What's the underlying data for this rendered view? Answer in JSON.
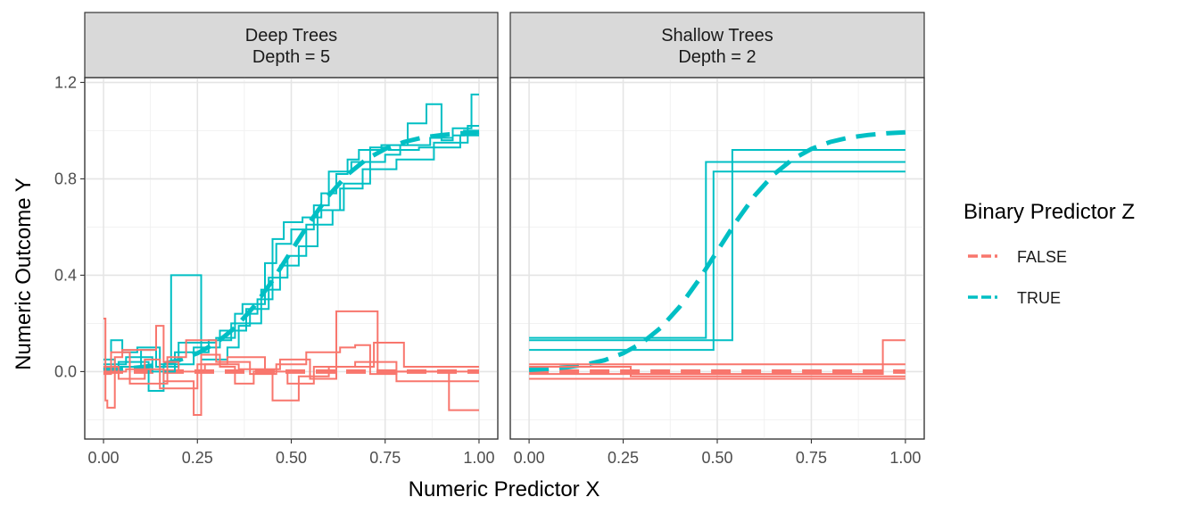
{
  "colors": {
    "FALSE": "#F8766D",
    "TRUE": "#00BFC4"
  },
  "chart_data": {
    "type": "line",
    "xlabel": "Numeric Predictor X",
    "ylabel": "Numeric Outcome Y",
    "xlim": [
      -0.05,
      1.05
    ],
    "ylim": [
      -0.28,
      1.22
    ],
    "x_ticks": [
      0,
      0.25,
      0.5,
      0.75,
      1
    ],
    "x_tick_labels": [
      "0.00",
      "0.25",
      "0.50",
      "0.75",
      "1.00"
    ],
    "y_ticks": [
      0,
      0.4,
      0.8,
      1.2
    ],
    "y_tick_labels": [
      "0.0",
      "0.4",
      "0.8",
      "1.2"
    ],
    "legend": {
      "title": "Binary Predictor Z",
      "position": "right",
      "entries": [
        {
          "label": "FALSE",
          "color_key": "FALSE"
        },
        {
          "label": "TRUE",
          "color_key": "TRUE"
        }
      ]
    },
    "panels": [
      {
        "strip_line1": "Deep Trees",
        "strip_line2": "Depth = 5",
        "true_curve": {
          "group": "TRUE",
          "style": "dashed",
          "x": [
            0,
            0.05,
            0.1,
            0.15,
            0.2,
            0.25,
            0.3,
            0.35,
            0.4,
            0.45,
            0.5,
            0.55,
            0.6,
            0.65,
            0.7,
            0.75,
            0.8,
            0.85,
            0.9,
            0.95,
            1.0
          ],
          "y": [
            0.007,
            0.011,
            0.018,
            0.029,
            0.047,
            0.076,
            0.119,
            0.182,
            0.269,
            0.378,
            0.5,
            0.622,
            0.731,
            0.818,
            0.881,
            0.924,
            0.953,
            0.971,
            0.982,
            0.989,
            0.993
          ]
        },
        "false_curve": {
          "group": "FALSE",
          "style": "dashed",
          "x": [
            0,
            1
          ],
          "y": [
            0,
            0
          ]
        },
        "fits": [
          {
            "group": "TRUE",
            "x": [
              0,
              0.02,
              0.02,
              0.05,
              0.05,
              0.09,
              0.09,
              0.15,
              0.15,
              0.18,
              0.18,
              0.26,
              0.26,
              0.33,
              0.33,
              0.36,
              0.36,
              0.39,
              0.39,
              0.41,
              0.41,
              0.45,
              0.45,
              0.48,
              0.48,
              0.53,
              0.53,
              0.58,
              0.58,
              0.62,
              0.62,
              0.65,
              0.65,
              0.68,
              0.68,
              0.74,
              0.74,
              0.81,
              0.81,
              0.86,
              0.86,
              0.9,
              0.9,
              0.93,
              0.93,
              0.98,
              0.98,
              1.0
            ],
            "y": [
              0.02,
              0.02,
              0.13,
              0.13,
              0.08,
              0.08,
              0.1,
              0.1,
              0.03,
              0.03,
              0.4,
              0.4,
              0.05,
              0.05,
              0.1,
              0.1,
              0.19,
              0.19,
              0.24,
              0.24,
              0.3,
              0.3,
              0.55,
              0.55,
              0.62,
              0.62,
              0.64,
              0.64,
              0.74,
              0.74,
              0.82,
              0.82,
              0.88,
              0.88,
              0.92,
              0.92,
              0.94,
              0.94,
              1.03,
              1.03,
              1.11,
              1.11,
              0.96,
              0.96,
              1.01,
              1.01,
              1.15,
              1.15
            ]
          },
          {
            "group": "TRUE",
            "x": [
              0,
              0.03,
              0.03,
              0.1,
              0.1,
              0.14,
              0.14,
              0.2,
              0.2,
              0.3,
              0.3,
              0.35,
              0.35,
              0.37,
              0.37,
              0.43,
              0.43,
              0.46,
              0.46,
              0.5,
              0.5,
              0.56,
              0.56,
              0.6,
              0.6,
              0.66,
              0.66,
              0.75,
              0.75,
              0.79,
              0.79,
              0.87,
              0.87,
              0.93,
              0.93,
              0.96,
              0.96,
              1.0
            ],
            "y": [
              0.05,
              0.05,
              0.02,
              0.02,
              0.09,
              0.09,
              0.02,
              0.02,
              0.12,
              0.12,
              0.14,
              0.14,
              0.24,
              0.24,
              0.28,
              0.28,
              0.45,
              0.45,
              0.53,
              0.53,
              0.59,
              0.59,
              0.69,
              0.69,
              0.83,
              0.83,
              0.87,
              0.87,
              0.9,
              0.9,
              0.94,
              0.94,
              0.97,
              0.97,
              0.98,
              0.98,
              1.0,
              1.0
            ]
          },
          {
            "group": "TRUE",
            "x": [
              0,
              0.04,
              0.04,
              0.12,
              0.12,
              0.16,
              0.16,
              0.24,
              0.24,
              0.31,
              0.31,
              0.38,
              0.38,
              0.44,
              0.44,
              0.49,
              0.49,
              0.54,
              0.54,
              0.61,
              0.61,
              0.64,
              0.64,
              0.71,
              0.71,
              0.76,
              0.76,
              0.84,
              0.84,
              0.95,
              0.95,
              1.0
            ],
            "y": [
              0.01,
              0.01,
              0.04,
              0.04,
              -0.08,
              -0.08,
              0.03,
              0.03,
              0.1,
              0.1,
              0.17,
              0.17,
              0.26,
              0.26,
              0.39,
              0.39,
              0.48,
              0.48,
              0.61,
              0.61,
              0.67,
              0.67,
              0.78,
              0.78,
              0.93,
              0.93,
              0.92,
              0.92,
              0.93,
              0.93,
              0.98,
              0.98
            ]
          },
          {
            "group": "TRUE",
            "x": [
              0,
              0.06,
              0.06,
              0.13,
              0.13,
              0.19,
              0.19,
              0.28,
              0.28,
              0.34,
              0.34,
              0.42,
              0.42,
              0.47,
              0.47,
              0.52,
              0.52,
              0.57,
              0.57,
              0.63,
              0.63,
              0.69,
              0.69,
              0.78,
              0.78,
              0.88,
              0.88,
              0.97,
              0.97,
              1.0
            ],
            "y": [
              0.03,
              0.03,
              0.06,
              0.06,
              0.0,
              0.0,
              0.08,
              0.08,
              0.13,
              0.13,
              0.2,
              0.2,
              0.34,
              0.34,
              0.44,
              0.44,
              0.52,
              0.52,
              0.67,
              0.67,
              0.76,
              0.76,
              0.84,
              0.84,
              0.88,
              0.88,
              0.95,
              0.95,
              1.02,
              1.02
            ]
          },
          {
            "group": "FALSE",
            "x": [
              0,
              0.005,
              0.005,
              0.01,
              0.01,
              0.03,
              0.03,
              0.05,
              0.05,
              0.14,
              0.14,
              0.16,
              0.16,
              0.2,
              0.2,
              0.27,
              0.27,
              0.36,
              0.36,
              0.47,
              0.47,
              0.55,
              0.55,
              0.62,
              0.62,
              0.73,
              0.73,
              0.92,
              0.92,
              1.0
            ],
            "y": [
              0.22,
              0.22,
              -0.12,
              -0.12,
              -0.15,
              -0.15,
              0.06,
              0.06,
              0.09,
              0.09,
              0.19,
              0.19,
              0.04,
              0.04,
              0.0,
              0.0,
              0.03,
              0.03,
              0.01,
              0.01,
              0.05,
              0.05,
              -0.03,
              -0.03,
              0.25,
              0.25,
              0.0,
              0.0,
              -0.16,
              -0.16
            ]
          },
          {
            "group": "FALSE",
            "x": [
              0,
              0.02,
              0.02,
              0.07,
              0.07,
              0.17,
              0.17,
              0.22,
              0.22,
              0.3,
              0.3,
              0.39,
              0.39,
              0.46,
              0.46,
              0.54,
              0.54,
              0.63,
              0.63,
              0.67,
              0.67,
              0.71,
              0.71,
              0.78,
              0.78,
              1.0
            ],
            "y": [
              -0.01,
              -0.01,
              0.08,
              0.08,
              -0.05,
              -0.05,
              0.06,
              0.06,
              0.13,
              0.13,
              0.04,
              0.04,
              -0.01,
              -0.01,
              0.03,
              0.03,
              0.08,
              0.08,
              0.1,
              0.1,
              0.11,
              0.11,
              -0.01,
              -0.01,
              0.0,
              0.0
            ]
          },
          {
            "group": "FALSE",
            "x": [
              0,
              0.04,
              0.04,
              0.11,
              0.11,
              0.15,
              0.15,
              0.25,
              0.25,
              0.33,
              0.33,
              0.43,
              0.43,
              0.49,
              0.49,
              0.56,
              0.56,
              0.67,
              0.67,
              0.78,
              0.78,
              0.85,
              0.85,
              1.0
            ],
            "y": [
              0.02,
              0.02,
              -0.03,
              -0.03,
              0.05,
              0.05,
              -0.07,
              -0.07,
              0.03,
              0.03,
              0.06,
              0.06,
              0.0,
              0.0,
              -0.05,
              -0.05,
              0.02,
              0.02,
              0.04,
              0.04,
              -0.04,
              -0.04,
              -0.04,
              -0.04
            ]
          },
          {
            "group": "FALSE",
            "x": [
              0,
              0.06,
              0.06,
              0.16,
              0.16,
              0.24,
              0.24,
              0.26,
              0.26,
              0.31,
              0.31,
              0.35,
              0.35,
              0.4,
              0.4,
              0.45,
              0.45,
              0.52,
              0.52,
              0.6,
              0.6,
              0.72,
              0.72,
              0.8,
              0.8,
              1.0
            ],
            "y": [
              0.0,
              0.0,
              0.01,
              0.01,
              -0.04,
              -0.04,
              -0.18,
              -0.18,
              0.07,
              0.07,
              0.02,
              0.02,
              -0.05,
              -0.05,
              0.0,
              0.0,
              -0.12,
              -0.12,
              -0.02,
              -0.02,
              0.02,
              0.02,
              0.12,
              0.12,
              0.02,
              0.02
            ]
          }
        ]
      },
      {
        "strip_line1": "Shallow Trees",
        "strip_line2": "Depth = 2",
        "true_curve": {
          "group": "TRUE",
          "style": "dashed",
          "x": [
            0,
            0.05,
            0.1,
            0.15,
            0.2,
            0.25,
            0.3,
            0.35,
            0.4,
            0.45,
            0.5,
            0.55,
            0.6,
            0.65,
            0.7,
            0.75,
            0.8,
            0.85,
            0.9,
            0.95,
            1.0
          ],
          "y": [
            0.007,
            0.011,
            0.018,
            0.029,
            0.047,
            0.076,
            0.119,
            0.182,
            0.269,
            0.378,
            0.5,
            0.622,
            0.731,
            0.818,
            0.881,
            0.924,
            0.953,
            0.971,
            0.982,
            0.989,
            0.993
          ]
        },
        "false_curve": {
          "group": "FALSE",
          "style": "dashed",
          "x": [
            0,
            1
          ],
          "y": [
            0,
            0
          ]
        },
        "fits": [
          {
            "group": "TRUE",
            "x": [
              0,
              0.47,
              0.47,
              1.0
            ],
            "y": [
              0.14,
              0.14,
              0.87,
              0.87
            ]
          },
          {
            "group": "TRUE",
            "x": [
              0,
              0.54,
              0.54,
              1.0
            ],
            "y": [
              0.13,
              0.13,
              0.92,
              0.92
            ]
          },
          {
            "group": "TRUE",
            "x": [
              0,
              0.49,
              0.49,
              1.0
            ],
            "y": [
              0.09,
              0.09,
              0.83,
              0.83
            ]
          },
          {
            "group": "FALSE",
            "x": [
              0,
              1.0
            ],
            "y": [
              0.03,
              0.03
            ]
          },
          {
            "group": "FALSE",
            "x": [
              0,
              0.27,
              0.27,
              0.38,
              0.38,
              1.0
            ],
            "y": [
              0.02,
              0.02,
              -0.02,
              -0.02,
              -0.02,
              -0.02
            ]
          },
          {
            "group": "FALSE",
            "x": [
              0,
              0.94,
              0.94,
              1.0
            ],
            "y": [
              -0.01,
              -0.01,
              0.13,
              0.13
            ]
          },
          {
            "group": "FALSE",
            "x": [
              0,
              1.0
            ],
            "y": [
              -0.03,
              -0.03
            ]
          }
        ]
      }
    ]
  }
}
